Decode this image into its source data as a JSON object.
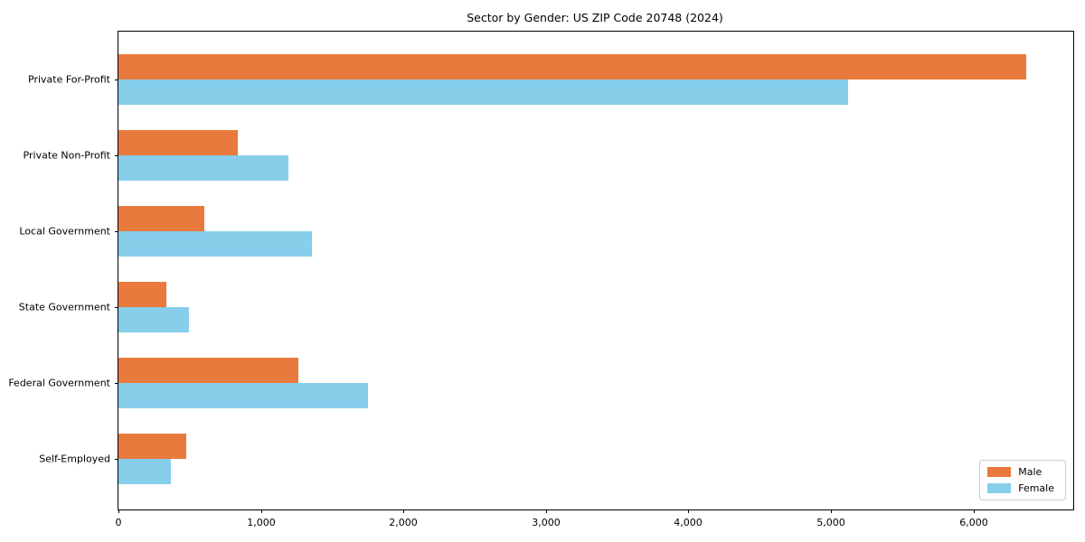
{
  "chart_data": {
    "type": "bar",
    "orientation": "horizontal",
    "title": "Sector by Gender: US ZIP Code 20748 (2024)",
    "categories": [
      "Private For-Profit",
      "Private Non-Profit",
      "Local Government",
      "State Government",
      "Federal Government",
      "Self-Employed"
    ],
    "series": [
      {
        "name": "Male",
        "color": "#e87a3e",
        "values": [
          6370,
          840,
          600,
          335,
          1260,
          475
        ]
      },
      {
        "name": "Female",
        "color": "#87ceeb",
        "values": [
          5120,
          1190,
          1360,
          495,
          1750,
          370
        ]
      }
    ],
    "xlabel": "",
    "ylabel": "",
    "xlim": [
      0,
      6700
    ],
    "xticks": [
      0,
      1000,
      2000,
      3000,
      4000,
      5000,
      6000
    ],
    "xtick_labels": [
      "0",
      "1,000",
      "2,000",
      "3,000",
      "4,000",
      "5,000",
      "6,000"
    ],
    "grid": false,
    "legend_position": "lower right"
  },
  "colors": {
    "background": "#ffffff",
    "frame": "#000000",
    "text": "#000000",
    "legend_border": "#cccccc"
  }
}
